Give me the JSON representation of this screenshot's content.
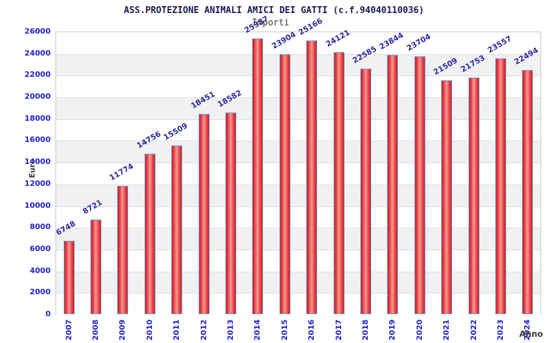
{
  "title": "ASS.PROTEZIONE ANIMALI AMICI DEI GATTI (c.f.94040110036)",
  "subtitle": "Importi",
  "y_axis_title": "Euro",
  "x_axis_title": "Anno",
  "chart_data": {
    "type": "bar",
    "title": "ASS.PROTEZIONE ANIMALI AMICI DEI GATTI (c.f.94040110036)",
    "subtitle": "Importi",
    "xlabel": "Anno",
    "ylabel": "Euro",
    "categories": [
      "2007",
      "2008",
      "2009",
      "2010",
      "2011",
      "2012",
      "2013",
      "2014",
      "2015",
      "2016",
      "2017",
      "2018",
      "2019",
      "2020",
      "2021",
      "2022",
      "2023",
      "2024"
    ],
    "values": [
      6748,
      8721,
      11774,
      14756,
      15509,
      18451,
      18582,
      25387,
      23904,
      25166,
      24121,
      22585,
      23844,
      23704,
      21509,
      21753,
      23557,
      22494
    ],
    "bar_value_labels": [
      "6748",
      "8721",
      "11774",
      "14756",
      "15509",
      "18451",
      "18582",
      "25387",
      "23904",
      "25166",
      "24121",
      "22585",
      "23844",
      "23704",
      "21509",
      "21753",
      "23557",
      "22494"
    ],
    "ylim": [
      0,
      26000
    ],
    "ytick_step": 2000,
    "yticks": [
      0,
      2000,
      4000,
      6000,
      8000,
      10000,
      12000,
      14000,
      16000,
      18000,
      20000,
      22000,
      24000,
      26000
    ],
    "grid": "alternating horizontal bands every 2000, gray bands at 2000-4000, 6000-8000, 10000-12000, 14000-16000, 18000-20000, 22000-24000",
    "legend": "none"
  },
  "colors": {
    "tick_label": "#2222cc",
    "bar_value_label": "#2b2b9e",
    "title": "#1a1a52",
    "subtitle": "#3c3c3c",
    "axis_title": "#3d3d3d",
    "bar_border": "#6ba0e0",
    "bar_edge_red": "#cf1d1d",
    "bar_mid_red": "#e84545",
    "bar_light_red": "#f59898",
    "band_gray": "#f1f1f3",
    "band_white": "#ffffff",
    "gridline": "#dcdcdc",
    "plot_border": "#c9c9c9",
    "background": "#ffffff"
  }
}
